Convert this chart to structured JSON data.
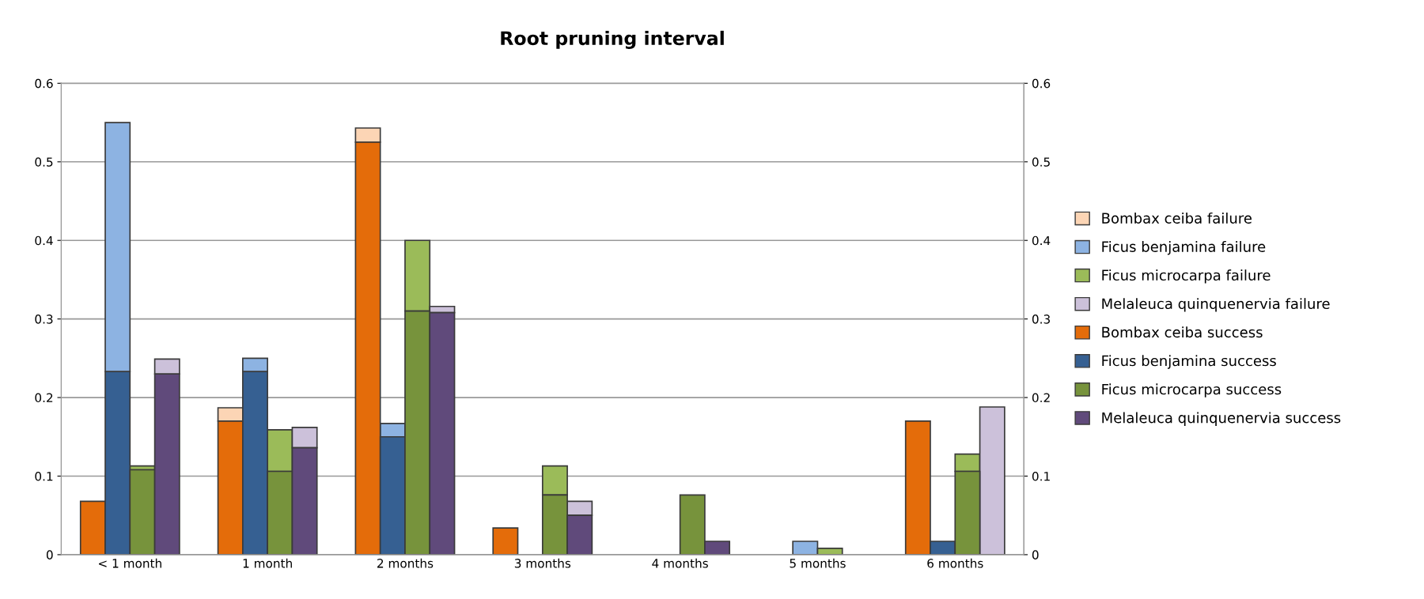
{
  "chart_data": {
    "type": "bar",
    "title": "Root pruning interval",
    "categories": [
      "< 1 month",
      "1 month",
      "2 months",
      "3 months",
      "4 months",
      "5 months",
      "6 months"
    ],
    "series": [
      {
        "name": "Bombax ceiba failure",
        "color": "#fcd5b5",
        "values": [
          null,
          0.017,
          0.018,
          null,
          null,
          null,
          null
        ],
        "base": [
          null,
          0.17,
          0.525,
          null,
          null,
          null,
          null
        ]
      },
      {
        "name": "Ficus benjamina failure",
        "color": "#8db3e2",
        "values": [
          0.317,
          0.017,
          0.017,
          null,
          null,
          0.017,
          null
        ],
        "base": [
          0.233,
          0.233,
          0.15,
          null,
          null,
          0,
          null
        ]
      },
      {
        "name": "Ficus microcarpa failure",
        "color": "#9bbb59",
        "values": [
          0.005,
          0.053,
          0.09,
          0.037,
          null,
          0.008,
          0.022
        ],
        "base": [
          0.108,
          0.106,
          0.31,
          0.076,
          null,
          0,
          0.106
        ]
      },
      {
        "name": "Melaleuca quinquenervia failure",
        "color": "#ccc1da",
        "values": [
          0.019,
          0.026,
          0.008,
          0.018,
          null,
          null,
          0.188
        ],
        "base": [
          0.23,
          0.136,
          0.308,
          0.05,
          null,
          null,
          0
        ]
      },
      {
        "name": "Bombax ceiba success",
        "color": "#e46c0a",
        "values": [
          0.068,
          0.17,
          0.525,
          0.034,
          null,
          null,
          0.17
        ]
      },
      {
        "name": "Ficus benjamina success",
        "color": "#366092",
        "values": [
          0.233,
          0.233,
          0.15,
          null,
          null,
          null,
          0.017
        ]
      },
      {
        "name": "Ficus microcarpa success",
        "color": "#77933c",
        "values": [
          0.108,
          0.106,
          0.31,
          0.076,
          0.076,
          null,
          0.106
        ]
      },
      {
        "name": "Melaleuca quinquenervia success",
        "color": "#604a7b",
        "values": [
          0.23,
          0.136,
          0.308,
          0.05,
          0.017,
          null,
          null
        ]
      }
    ],
    "ylim": [
      0,
      0.6
    ],
    "yticks": [
      0,
      0.1,
      0.2,
      0.3,
      0.4,
      0.5,
      0.6
    ],
    "y2lim": [
      0,
      0.6
    ],
    "y2ticks": [
      0,
      0.1,
      0.2,
      0.3,
      0.4,
      0.5,
      0.6
    ],
    "grid": "y",
    "legend": "right"
  }
}
